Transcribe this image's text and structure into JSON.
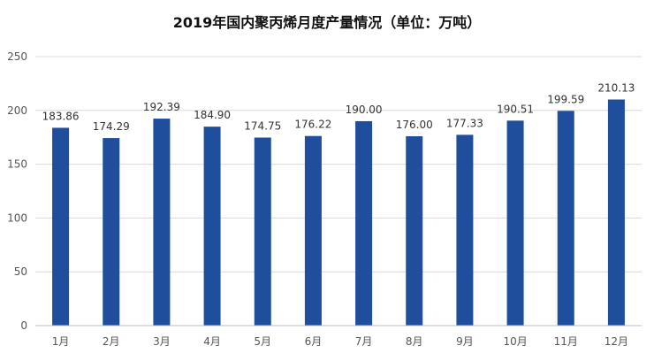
{
  "chart_data": {
    "type": "bar",
    "title": "2019年国内聚丙烯月度产量情况（单位：万吨）",
    "categories": [
      "1月",
      "2月",
      "3月",
      "4月",
      "5月",
      "6月",
      "7月",
      "8月",
      "9月",
      "10月",
      "11月",
      "12月"
    ],
    "values": [
      183.86,
      174.29,
      192.39,
      184.9,
      174.75,
      176.22,
      190.0,
      176.0,
      177.33,
      190.51,
      199.59,
      210.13
    ],
    "value_labels": [
      "183.86",
      "174.29",
      "192.39",
      "184.90",
      "174.75",
      "176.22",
      "190.00",
      "176.00",
      "177.33",
      "190.51",
      "199.59",
      "210.13"
    ],
    "ylim": [
      0,
      250
    ],
    "yticks": [
      0,
      50,
      100,
      150,
      200,
      250
    ],
    "grid": true,
    "bar_color": "#1f4e9c"
  }
}
